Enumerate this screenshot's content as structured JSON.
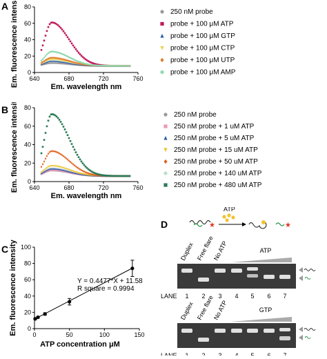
{
  "panels": {
    "a": "A",
    "b": "B",
    "c": "C",
    "d": "D"
  },
  "chart_data": [
    {
      "id": "A",
      "type": "line",
      "xlabel": "Em. wavelength nm",
      "ylabel": "Em. fluorescence intensity",
      "xlim": [
        640,
        760
      ],
      "ylim": [
        0,
        80
      ],
      "xticks": [
        640,
        680,
        720,
        760
      ],
      "yticks": [
        0,
        20,
        40,
        60,
        80
      ],
      "legend_position": "right",
      "series": [
        {
          "name": "250 nM probe",
          "color": "#9a9a9a",
          "marker": "circle",
          "peak": 11.5,
          "base": 8
        },
        {
          "name": "probe + 100 μM ATP",
          "color": "#c2185b",
          "marker": "square",
          "peak": 61,
          "base": 8
        },
        {
          "name": "probe + 100 μM GTP",
          "color": "#2e5fa8",
          "marker": "triangle",
          "peak": 14,
          "base": 8
        },
        {
          "name": "probe + 100 μM CTP",
          "color": "#e8d44a",
          "marker": "triangle-down",
          "peak": 16,
          "base": 8
        },
        {
          "name": "probe + 100 μM UTP",
          "color": "#e07a2a",
          "marker": "diamond",
          "peak": 18,
          "base": 8
        },
        {
          "name": "probe + 100 μM AMP",
          "color": "#8fd8b0",
          "marker": "circle",
          "peak": 25.5,
          "base": 8
        }
      ],
      "peak_x": 660
    },
    {
      "id": "B",
      "type": "line",
      "xlabel": "Em. wavelength nm",
      "ylabel": "Em. fluorescence intensity",
      "xlim": [
        640,
        760
      ],
      "ylim": [
        0,
        80
      ],
      "xticks": [
        640,
        680,
        720,
        760
      ],
      "yticks": [
        0,
        20,
        40,
        60,
        80
      ],
      "legend_position": "right",
      "series": [
        {
          "name": "250 nM probe",
          "color": "#9a9a9a",
          "marker": "circle",
          "peak": 12,
          "base": 6
        },
        {
          "name": "250 nM probe + 1 uM ATP",
          "color": "#e79ab8",
          "marker": "square",
          "peak": 12.5,
          "base": 6
        },
        {
          "name": "250 nM probe + 5 uM ATP",
          "color": "#2e5fa8",
          "marker": "triangle",
          "peak": 14,
          "base": 6
        },
        {
          "name": "250 nM probe + 15 uM ATP",
          "color": "#e8c42a",
          "marker": "triangle-down",
          "peak": 17,
          "base": 6
        },
        {
          "name": "250 nM probe + 50 uM ATP",
          "color": "#e0601a",
          "marker": "diamond",
          "peak": 33,
          "base": 6
        },
        {
          "name": "250 nM probe + 140 uM ATP",
          "color": "#b8e0c8",
          "marker": "circle",
          "peak": 73,
          "base": 6
        },
        {
          "name": "250 nM probe + 480 uM ATP",
          "color": "#2a7a55",
          "marker": "square",
          "peak": 73,
          "base": 6
        }
      ],
      "peak_x": 660
    },
    {
      "id": "C",
      "type": "scatter",
      "xlabel": "ATP concentration μM",
      "ylabel": "Em. fluorescence intensity",
      "xlim": [
        0,
        150
      ],
      "ylim": [
        0,
        100
      ],
      "xticks": [
        0,
        50,
        100,
        150
      ],
      "yticks": [
        0,
        20,
        40,
        60,
        80,
        100
      ],
      "points": [
        {
          "x": 1,
          "y": 12,
          "err": 1
        },
        {
          "x": 5,
          "y": 14,
          "err": 1
        },
        {
          "x": 15,
          "y": 18,
          "err": 1.5
        },
        {
          "x": 50,
          "y": 33,
          "err": 4
        },
        {
          "x": 140,
          "y": 74,
          "err": 10
        }
      ],
      "fit": {
        "slope": 0.4477,
        "intercept": 11.58
      },
      "annotation_eq": "Y = 0.4477*X + 11.58",
      "annotation_r2": "R square = 0.9994"
    }
  ],
  "gel": {
    "atp_label": "ATP",
    "lane_caption": "LANE",
    "lanes": [
      "1",
      "2",
      "3",
      "4",
      "5",
      "6",
      "7"
    ],
    "gel1": {
      "header": [
        "Duplex",
        "Free flare",
        "No ATP"
      ],
      "gradient_label": "ATP"
    },
    "gel2": {
      "header": [
        "Duplex",
        "Free flare",
        "No ATP"
      ],
      "gradient_label": "GTP"
    }
  }
}
